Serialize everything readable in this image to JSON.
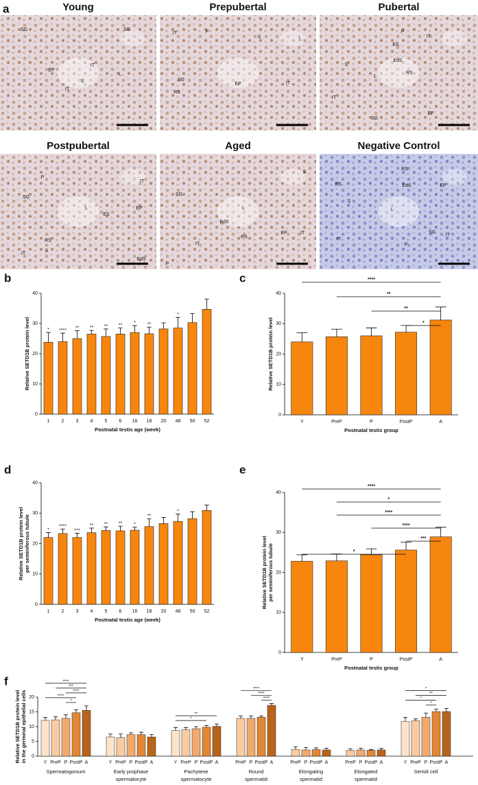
{
  "panel_a": {
    "letter": "a",
    "images": [
      {
        "title": "Young",
        "labels": [
          "SG",
          "SG",
          "EP",
          "IT",
          "IT",
          "S",
          "L"
        ]
      },
      {
        "title": "Prepubertal",
        "labels": [
          "IT",
          "P",
          "S",
          "L",
          "SG",
          "RS",
          "EP",
          "IT"
        ]
      },
      {
        "title": "Pubertal",
        "labels": [
          "P",
          "IT",
          "ES",
          "EdS",
          "S",
          "L",
          "RS",
          "IT",
          "EP",
          "SG"
        ]
      },
      {
        "title": "Postpubertal",
        "labels": [
          "P",
          "SG",
          "IT",
          "EP",
          "L",
          "ES",
          "IT",
          "RS",
          "S",
          "EdS"
        ]
      },
      {
        "title": "Aged",
        "labels": [
          "S",
          "SG",
          "L",
          "EdS",
          "RS",
          "EP",
          "IT",
          "IT",
          "P"
        ]
      },
      {
        "title": "Negative Control",
        "labels": [
          "RS",
          "ES",
          "EdS",
          "EP",
          "S",
          "L",
          "IT",
          "P",
          "SG",
          "IT"
        ]
      }
    ]
  },
  "chart_data": [
    {
      "type": "bar",
      "panel": "b",
      "ylabel": [
        "Relative SETD1B protein level"
      ],
      "xlabel": "Postnatal testis age (week)",
      "categories": [
        "1",
        "2",
        "3",
        "4",
        "5",
        "6",
        "16",
        "18",
        "20",
        "48",
        "50",
        "52"
      ],
      "values": [
        23.8,
        24.0,
        25.0,
        26.5,
        25.7,
        26.5,
        27.0,
        26.6,
        28.2,
        28.5,
        30.3,
        34.7
      ],
      "errors": [
        3.2,
        2.8,
        2.6,
        1.2,
        2.5,
        2.0,
        2.3,
        2.2,
        2.0,
        3.5,
        3.0,
        3.4
      ],
      "significance": [
        "*",
        "****",
        "**",
        "**",
        "**",
        "**",
        "*",
        "**",
        null,
        "*",
        null,
        null
      ],
      "color": "#f7860e",
      "ylim": [
        0,
        40
      ],
      "yticks": [
        0,
        10,
        20,
        30,
        40
      ]
    },
    {
      "type": "bar",
      "panel": "c",
      "ylabel": [
        "Relative SETD1B protein level"
      ],
      "xlabel": "Postnatal testis group",
      "categories": [
        "Y",
        "PreP",
        "P",
        "PostP",
        "A"
      ],
      "values": [
        24.0,
        25.7,
        26.0,
        27.2,
        31.2
      ],
      "errors": [
        3.0,
        2.5,
        2.6,
        2.2,
        4.3
      ],
      "comparisons": [
        {
          "from": "Y",
          "to": "A",
          "label": "****"
        },
        {
          "from": "PreP",
          "to": "A",
          "label": "**"
        },
        {
          "from": "P",
          "to": "A",
          "label": "**"
        },
        {
          "from": "PostP",
          "to": "A",
          "label": "*"
        }
      ],
      "color": "#f7860e",
      "ylim": [
        0,
        40
      ],
      "yticks": [
        0,
        10,
        20,
        30,
        40
      ]
    },
    {
      "type": "bar",
      "panel": "d",
      "ylabel": [
        "Relative SETD1B protein level",
        "per seminiferous tubule"
      ],
      "xlabel": "Postnatal testis age (week)",
      "categories": [
        "1",
        "2",
        "3",
        "4",
        "5",
        "6",
        "16",
        "18",
        "20",
        "48",
        "50",
        "52"
      ],
      "values": [
        22.0,
        23.3,
        22.0,
        23.6,
        24.3,
        24.2,
        24.4,
        25.6,
        26.6,
        27.3,
        28.2,
        30.9
      ],
      "errors": [
        1.6,
        1.5,
        1.4,
        1.5,
        1.2,
        1.5,
        1.0,
        2.6,
        2.0,
        2.4,
        2.3,
        1.8
      ],
      "significance": [
        "*",
        "****",
        "***",
        "**",
        "**",
        "**",
        "*",
        "**",
        null,
        "*",
        null,
        null
      ],
      "color": "#f7860e",
      "ylim": [
        0,
        40
      ],
      "yticks": [
        0,
        10,
        20,
        30,
        40
      ]
    },
    {
      "type": "bar",
      "panel": "e",
      "ylabel": [
        "Relative SETD1B protein level",
        "per seminiferous tubule"
      ],
      "xlabel": "Postnatal testis group",
      "categories": [
        "Y",
        "PreP",
        "P",
        "PostP",
        "A"
      ],
      "values": [
        22.8,
        22.9,
        24.4,
        25.6,
        28.9
      ],
      "errors": [
        1.6,
        1.7,
        1.5,
        2.0,
        2.4
      ],
      "comparisons": [
        {
          "from": "Y",
          "to": "A",
          "label": "****"
        },
        {
          "from": "PreP",
          "to": "A",
          "label": "*"
        },
        {
          "from": "PreP",
          "to": "A",
          "label": "****"
        },
        {
          "from": "P",
          "to": "A",
          "label": "****"
        },
        {
          "from": "PostP",
          "to": "A",
          "label": "***"
        },
        {
          "from": "Y",
          "to": "PostP",
          "label": "*"
        }
      ],
      "color": "#f7860e",
      "ylim": [
        0,
        40
      ],
      "yticks": [
        0,
        10,
        20,
        30,
        40
      ]
    },
    {
      "type": "grouped_bar",
      "panel": "f",
      "ylabel": [
        "Relative SETD1B protein level",
        "in the germinal epithelial cells"
      ],
      "ylim": [
        0,
        20
      ],
      "yticks": [
        0,
        5,
        10,
        15,
        20
      ],
      "groups": [
        {
          "name": [
            "Spermatogonium"
          ],
          "categories": [
            "Y",
            "PreP",
            "P",
            "PostP",
            "A"
          ],
          "values": [
            12.1,
            12.3,
            12.8,
            14.7,
            15.5
          ],
          "errors": [
            1.0,
            1.0,
            1.2,
            1.0,
            1.5
          ],
          "colors": [
            "#fde3c8",
            "#f9cba0",
            "#f2a96c",
            "#e38735",
            "#b8641a"
          ],
          "comparisons": [
            {
              "from": "Y",
              "to": "A",
              "label": "****"
            },
            {
              "from": "PreP",
              "to": "A",
              "label": "***"
            },
            {
              "from": "P",
              "to": "A",
              "label": "****"
            },
            {
              "from": "Y",
              "to": "PostP",
              "label": "****"
            },
            {
              "from": "P",
              "to": "PostP",
              "label": "*"
            }
          ]
        },
        {
          "name": [
            "Early prophase",
            "spermatocyte"
          ],
          "categories": [
            "Y",
            "PreP",
            "P",
            "PostP",
            "A"
          ],
          "values": [
            6.5,
            6.3,
            7.3,
            7.3,
            6.5
          ],
          "errors": [
            1.0,
            1.2,
            0.6,
            0.8,
            0.8
          ],
          "colors": [
            "#fde3c8",
            "#f9cba0",
            "#f2a96c",
            "#e38735",
            "#b8641a"
          ],
          "comparisons": []
        },
        {
          "name": [
            "Pachytene",
            "spermatocyte"
          ],
          "categories": [
            "Y",
            "PreP",
            "P",
            "PostP",
            "A"
          ],
          "values": [
            8.7,
            8.9,
            9.3,
            9.8,
            10.1
          ],
          "errors": [
            1.0,
            0.8,
            0.7,
            0.6,
            0.8
          ],
          "colors": [
            "#fde3c8",
            "#f9cba0",
            "#f2a96c",
            "#e38735",
            "#b8641a"
          ],
          "comparisons": [
            {
              "from": "Y",
              "to": "A",
              "label": "**"
            },
            {
              "from": "Y",
              "to": "PostP",
              "label": "*"
            }
          ]
        },
        {
          "name": [
            "Round",
            "spermatid"
          ],
          "categories": [
            "PreP",
            "P",
            "PostP",
            "A"
          ],
          "values": [
            12.8,
            12.8,
            13.2,
            17.2
          ],
          "errors": [
            0.8,
            0.8,
            0.4,
            0.6
          ],
          "colors": [
            "#f9cba0",
            "#f2a96c",
            "#e38735",
            "#b8641a"
          ],
          "comparisons": [
            {
              "from": "PreP",
              "to": "A",
              "label": "****"
            },
            {
              "from": "P",
              "to": "A",
              "label": "****"
            },
            {
              "from": "PostP",
              "to": "A",
              "label": "****"
            }
          ]
        },
        {
          "name": [
            "Elongating",
            "spermatid"
          ],
          "categories": [
            "PreP",
            "P",
            "PostP",
            "A"
          ],
          "values": [
            2.3,
            2.1,
            2.2,
            2.1
          ],
          "errors": [
            0.9,
            0.8,
            0.6,
            0.6
          ],
          "colors": [
            "#f9cba0",
            "#f2a96c",
            "#e38735",
            "#b8641a"
          ],
          "comparisons": []
        },
        {
          "name": [
            "Elongated",
            "spermatid"
          ],
          "categories": [
            "PreP",
            "P",
            "PostP",
            "A"
          ],
          "values": [
            1.9,
            2.1,
            2.0,
            2.1
          ],
          "errors": [
            0.6,
            0.6,
            0.2,
            0.5
          ],
          "colors": [
            "#f9cba0",
            "#f2a96c",
            "#e38735",
            "#b8641a"
          ],
          "comparisons": []
        },
        {
          "name": [
            "Sertoli cell"
          ],
          "categories": [
            "Y",
            "PreP",
            "P",
            "PostP",
            "A"
          ],
          "values": [
            11.8,
            12.0,
            13.2,
            15.1,
            15.1
          ],
          "errors": [
            1.3,
            0.6,
            1.4,
            0.8,
            1.1
          ],
          "colors": [
            "#fde3c8",
            "#f9cba0",
            "#f2a96c",
            "#e38735",
            "#b8641a"
          ],
          "comparisons": [
            {
              "from": "Y",
              "to": "A",
              "label": "*"
            },
            {
              "from": "PreP",
              "to": "A",
              "label": "**"
            },
            {
              "from": "Y",
              "to": "PostP",
              "label": "*"
            },
            {
              "from": "P",
              "to": "PostP",
              "label": "*"
            }
          ]
        }
      ]
    }
  ]
}
